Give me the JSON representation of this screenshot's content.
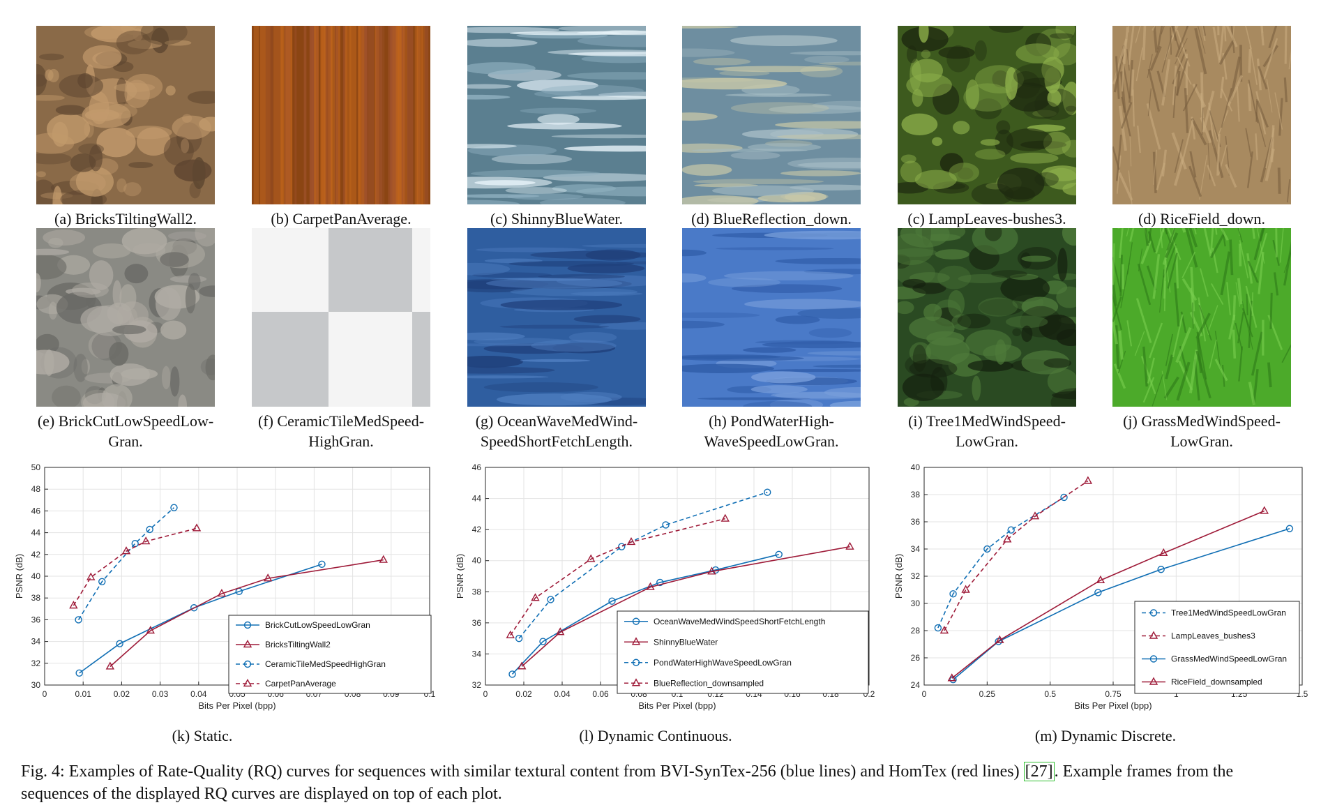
{
  "thumbnails": [
    {
      "id": "a",
      "caption": "(a) BricksTiltingWall2.",
      "colors": [
        "#8a6a48",
        "#c29a6c",
        "#5e4630"
      ]
    },
    {
      "id": "b",
      "caption": "(b) CarpetPanAverage.",
      "colors": [
        "#8b4513",
        "#c0651c",
        "#a0522d"
      ]
    },
    {
      "id": "c1",
      "caption": "(c) ShinnyBlueWater.",
      "colors": [
        "#5b7f90",
        "#8fb0c0",
        "#e8f4fa"
      ]
    },
    {
      "id": "d1",
      "caption": "(d) BlueReflection_down.",
      "colors": [
        "#6e8ea0",
        "#a6bcc4",
        "#c8c8a8"
      ]
    },
    {
      "id": "c2",
      "caption": "(c) LampLeaves-bushes3.",
      "colors": [
        "#3d5a1e",
        "#8cae4a",
        "#1e2a10"
      ]
    },
    {
      "id": "d2",
      "caption": "(d) RiceField_down.",
      "colors": [
        "#a88a60",
        "#c8ab7e",
        "#7a6040"
      ]
    },
    {
      "id": "e",
      "caption": "(e) BrickCutLowSpeedLow-Gran.",
      "colors": [
        "#8a8a84",
        "#b0aca4",
        "#6a6a66"
      ]
    },
    {
      "id": "f",
      "caption": "(f) CeramicTileMedSpeed-HighGran.",
      "colors": [
        "#c6c8ca",
        "#e8eaea",
        "#f4f4f4"
      ]
    },
    {
      "id": "g",
      "caption": "(g) OceanWaveMedWind-SpeedShortFetchLength.",
      "colors": [
        "#2f5ea0",
        "#4f7ec0",
        "#1f3f7a"
      ]
    },
    {
      "id": "h",
      "caption": "(h) PondWaterHigh-WaveSpeedLowGran.",
      "colors": [
        "#4a7ac8",
        "#7aa0dc",
        "#2f5ca8"
      ]
    },
    {
      "id": "i",
      "caption": "(i) Tree1MedWindSpeed-LowGran.",
      "colors": [
        "#2a4a22",
        "#4e7a3a",
        "#14200e"
      ]
    },
    {
      "id": "j",
      "caption": "(j) GrassMedWindSpeed-LowGran.",
      "colors": [
        "#4caa2a",
        "#7ad050",
        "#2e7a18"
      ]
    }
  ],
  "chart_data": [
    {
      "type": "line",
      "caption": "(k) Static.",
      "xlabel": "Bits Per Pixel (bpp)",
      "ylabel": "PSNR (dB)",
      "xlim": [
        0,
        0.1
      ],
      "ylim": [
        30,
        50
      ],
      "xticks": [
        0,
        0.01,
        0.02,
        0.03,
        0.04,
        0.05,
        0.06,
        0.07,
        0.08,
        0.09,
        0.1
      ],
      "xtick_labels": [
        "0",
        "0.01",
        "0.02",
        "0.03",
        "0.04",
        "0.05",
        "0.06",
        "0.07",
        "0.08",
        "0.09",
        "0.1"
      ],
      "yticks": [
        30,
        32,
        34,
        36,
        38,
        40,
        42,
        44,
        46,
        48,
        50
      ],
      "ytick_labels": [
        "30",
        "32",
        "34",
        "36",
        "38",
        "40",
        "42",
        "44",
        "46",
        "48",
        "50"
      ],
      "grid": true,
      "legend_position": "bottom-right",
      "series": [
        {
          "name": "BrickCutLowSpeedLowGran",
          "color": "#0f6eb4",
          "style": "solid",
          "marker": "circle",
          "x": [
            0.009,
            0.0195,
            0.0388,
            0.0505,
            0.072
          ],
          "y": [
            31.1,
            33.8,
            37.1,
            38.6,
            41.1
          ]
        },
        {
          "name": "BricksTiltingWall2",
          "color": "#9e1a38",
          "style": "solid",
          "marker": "triangle",
          "x": [
            0.017,
            0.0275,
            0.046,
            0.058,
            0.088
          ],
          "y": [
            31.7,
            35.0,
            38.4,
            39.8,
            41.5
          ]
        },
        {
          "name": "CeramicTileMedSpeedHighGran",
          "color": "#0f6eb4",
          "style": "dashed",
          "marker": "circle",
          "x": [
            0.0088,
            0.0149,
            0.0235,
            0.0273,
            0.0336
          ],
          "y": [
            36.0,
            39.5,
            43.0,
            44.3,
            46.3
          ]
        },
        {
          "name": "CarpetPanAverage",
          "color": "#9e1a38",
          "style": "dashed",
          "marker": "triangle",
          "x": [
            0.0075,
            0.012,
            0.0212,
            0.0263,
            0.0395
          ],
          "y": [
            37.3,
            39.9,
            42.3,
            43.2,
            44.4
          ]
        }
      ]
    },
    {
      "type": "line",
      "caption": "(l) Dynamic Continuous.",
      "xlabel": "Bits Per Pixel (bpp)",
      "ylabel": "PSNR (dB)",
      "xlim": [
        0,
        0.2
      ],
      "ylim": [
        32,
        46
      ],
      "xticks": [
        0,
        0.02,
        0.04,
        0.06,
        0.08,
        0.1,
        0.12,
        0.14,
        0.16,
        0.18,
        0.2
      ],
      "xtick_labels": [
        "0",
        "0.02",
        "0.04",
        "0.06",
        "0.08",
        "0.1",
        "0.12",
        "0.14",
        "0.16",
        "0.18",
        "0.2"
      ],
      "yticks": [
        32,
        34,
        36,
        38,
        40,
        42,
        44,
        46
      ],
      "ytick_labels": [
        "32",
        "34",
        "36",
        "38",
        "40",
        "42",
        "44",
        "46"
      ],
      "grid": true,
      "legend_position": "bottom-right",
      "series": [
        {
          "name": "OceanWaveMedWindSpeedShortFetchLength",
          "color": "#0f6eb4",
          "style": "solid",
          "marker": "circle",
          "x": [
            0.014,
            0.03,
            0.066,
            0.091,
            0.12,
            0.153
          ],
          "y": [
            32.7,
            34.8,
            37.4,
            38.6,
            39.4,
            40.4
          ]
        },
        {
          "name": "ShinnyBlueWater",
          "color": "#9e1a38",
          "style": "solid",
          "marker": "triangle",
          "x": [
            0.019,
            0.039,
            0.086,
            0.118,
            0.19
          ],
          "y": [
            33.2,
            35.4,
            38.3,
            39.3,
            40.9
          ]
        },
        {
          "name": "PondWaterHighWaveSpeedLowGran",
          "color": "#0f6eb4",
          "style": "dashed",
          "marker": "circle",
          "x": [
            0.0175,
            0.034,
            0.071,
            0.094,
            0.147
          ],
          "y": [
            35.0,
            37.5,
            40.9,
            42.3,
            44.4
          ]
        },
        {
          "name": "BlueReflection_downsampled",
          "color": "#9e1a38",
          "style": "dashed",
          "marker": "triangle",
          "x": [
            0.013,
            0.026,
            0.055,
            0.076,
            0.125
          ],
          "y": [
            35.2,
            37.6,
            40.1,
            41.2,
            42.7
          ]
        }
      ]
    },
    {
      "type": "line",
      "caption": "(m) Dynamic Discrete.",
      "xlabel": "Bits Per Pixel (bpp)",
      "ylabel": "PSNR (dB)",
      "xlim": [
        0,
        1.5
      ],
      "ylim": [
        24,
        40
      ],
      "xticks": [
        0,
        0.25,
        0.5,
        0.75,
        1,
        1.25,
        1.5
      ],
      "xtick_labels": [
        "0",
        "0.25",
        "0.5",
        "0.75",
        "1",
        "1.25",
        "1.5"
      ],
      "yticks": [
        24,
        26,
        28,
        30,
        32,
        34,
        36,
        38,
        40
      ],
      "ytick_labels": [
        "24",
        "26",
        "28",
        "30",
        "32",
        "34",
        "36",
        "38",
        "40"
      ],
      "grid": true,
      "legend_position": "bottom-right",
      "series": [
        {
          "name": "Tree1MedWindSpeedLowGran",
          "color": "#0f6eb4",
          "style": "dashed",
          "marker": "circle",
          "x": [
            0.055,
            0.115,
            0.25,
            0.345,
            0.555
          ],
          "y": [
            28.2,
            30.7,
            34.0,
            35.4,
            37.8
          ]
        },
        {
          "name": "LampLeaves_bushes3",
          "color": "#9e1a38",
          "style": "dashed",
          "marker": "triangle",
          "x": [
            0.08,
            0.165,
            0.33,
            0.44,
            0.65
          ],
          "y": [
            28.0,
            31.0,
            34.7,
            36.4,
            39.0
          ]
        },
        {
          "name": "GrassMedWindSpeedLowGran",
          "color": "#0f6eb4",
          "style": "solid",
          "marker": "circle",
          "x": [
            0.115,
            0.295,
            0.69,
            0.94,
            1.45
          ],
          "y": [
            24.4,
            27.2,
            30.8,
            32.5,
            35.5
          ]
        },
        {
          "name": "RiceField_downsampled",
          "color": "#9e1a38",
          "style": "solid",
          "marker": "triangle",
          "x": [
            0.11,
            0.3,
            0.7,
            0.95,
            1.35
          ],
          "y": [
            24.5,
            27.3,
            31.7,
            33.7,
            36.8
          ]
        }
      ]
    }
  ],
  "figure_caption": {
    "label": "Fig. 4:",
    "text_before_ref": "Examples of Rate-Quality (RQ) curves for sequences with similar textural content from BVI-SynTex-256 (blue lines) and HomTex (red lines) ",
    "ref": "[27]",
    "text_after_ref": ". Example frames from the sequences of the displayed RQ curves are displayed on top of each plot."
  }
}
